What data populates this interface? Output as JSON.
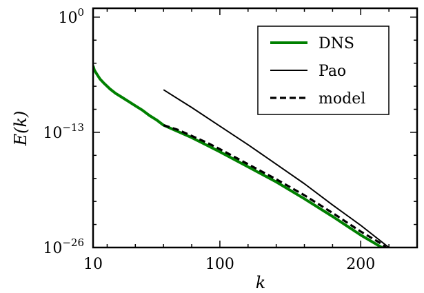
{
  "chart_data": {
    "type": "line",
    "xlabel": "k",
    "ylabel": "E(k)",
    "x_scale": "linear",
    "y_scale": "log",
    "xlim": [
      10,
      240
    ],
    "ylim_exponent": [
      -26,
      1
    ],
    "x_ticks": [
      {
        "value": 10,
        "label": "10"
      },
      {
        "value": 100,
        "label": "100"
      },
      {
        "value": 200,
        "label": "200"
      }
    ],
    "y_ticks": [
      {
        "exponent": 0,
        "base": "10",
        "sup": "0"
      },
      {
        "exponent": -13,
        "base": "10",
        "sup": "−13"
      },
      {
        "exponent": -26,
        "base": "10",
        "sup": "−26"
      }
    ],
    "legend_position": "top-right",
    "grid": false,
    "series": [
      {
        "name": "DNS",
        "color": "#008000",
        "style": "solid",
        "x": [
          10,
          11,
          13,
          15,
          18,
          22,
          26,
          30,
          35,
          40,
          45,
          50,
          55,
          60,
          70,
          80,
          90,
          100,
          120,
          140,
          160,
          180,
          200,
          215,
          220
        ],
        "log10_y": [
          -5.5,
          -6.0,
          -6.5,
          -7.0,
          -7.5,
          -8.1,
          -8.6,
          -9.0,
          -9.5,
          -10.0,
          -10.5,
          -11.1,
          -11.6,
          -12.2,
          -12.9,
          -13.6,
          -14.4,
          -15.2,
          -16.9,
          -18.6,
          -20.5,
          -22.5,
          -24.6,
          -26.0,
          -26.6
        ]
      },
      {
        "name": "Pao",
        "color": "#000000",
        "style": "solid",
        "x": [
          60,
          80,
          100,
          120,
          140,
          160,
          180,
          200,
          220,
          230
        ],
        "log10_y": [
          -8.2,
          -10.2,
          -12.3,
          -14.4,
          -16.6,
          -18.8,
          -21.2,
          -23.5,
          -26.0,
          -27.2
        ]
      },
      {
        "name": "model",
        "color": "#000000",
        "style": "dashed",
        "x": [
          60,
          70,
          80,
          90,
          100,
          120,
          140,
          160,
          180,
          200,
          215,
          220
        ],
        "log10_y": [
          -12.2,
          -12.7,
          -13.4,
          -14.1,
          -14.9,
          -16.6,
          -18.3,
          -20.1,
          -22.1,
          -24.2,
          -25.6,
          -26.3
        ]
      }
    ]
  }
}
